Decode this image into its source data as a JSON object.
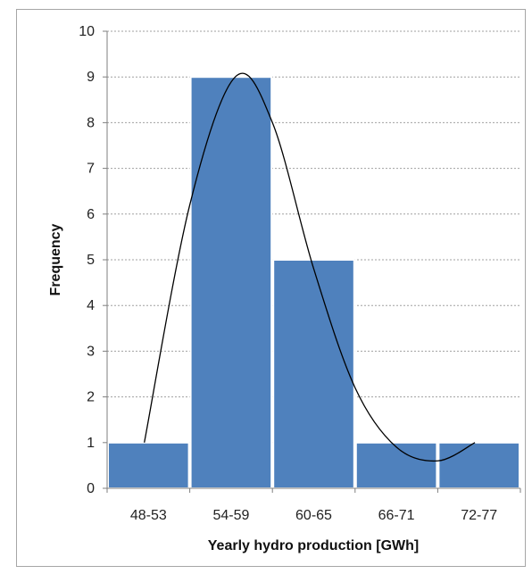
{
  "chart_data": {
    "type": "bar",
    "title": "",
    "xlabel": "Yearly hydro production [GWh]",
    "ylabel": "Frequency",
    "categories": [
      "48-53",
      "54-59",
      "60-65",
      "66-71",
      "72-77"
    ],
    "values": [
      1,
      9,
      5,
      1,
      1
    ],
    "ylim": [
      0,
      10
    ],
    "yticks": [
      "0",
      "1",
      "2",
      "3",
      "4",
      "5",
      "6",
      "7",
      "8",
      "9",
      "10"
    ],
    "grid": true,
    "legend": "none",
    "overlay_curve": {
      "type": "smooth-line",
      "description_points_x_category_index": [
        0.45,
        1.0,
        1.55,
        2.0,
        2.5,
        3.0,
        3.5,
        4.0,
        4.45
      ],
      "y": [
        1.0,
        6.2,
        9.0,
        8.0,
        4.8,
        2.2,
        0.9,
        0.6,
        1.0
      ]
    },
    "colors": {
      "bar": "#4f81bd",
      "bar_edge": "#ffffff",
      "grid": "#a0a0a0",
      "axis": "#7f7f7f",
      "curve": "#000000"
    }
  }
}
